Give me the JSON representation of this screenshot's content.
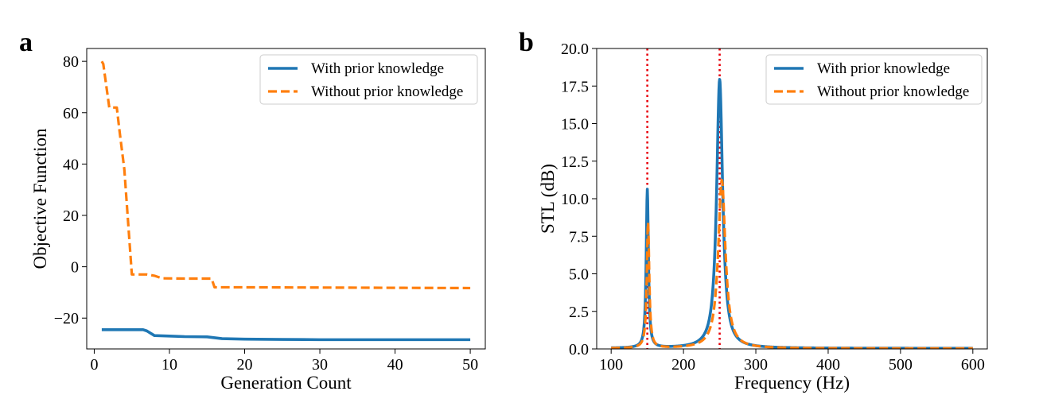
{
  "figure": {
    "panel_a": "a",
    "panel_b": "b"
  },
  "chart_data": [
    {
      "type": "line",
      "panel": "a",
      "title": "",
      "xlabel": "Generation Count",
      "ylabel": "Objective Function",
      "xlim": [
        -1,
        52
      ],
      "ylim": [
        -32,
        85
      ],
      "xticks": [
        0,
        10,
        20,
        30,
        40,
        50
      ],
      "xtick_labels": [
        "0",
        "10",
        "20",
        "30",
        "40",
        "50"
      ],
      "yticks": [
        -20,
        0,
        20,
        40,
        60,
        80
      ],
      "ytick_labels": [
        "−20",
        "0",
        "20",
        "40",
        "60",
        "80"
      ],
      "legend_position": "top-right",
      "series": [
        {
          "name": "With prior knowledge",
          "color": "#1f77b4",
          "style": "solid",
          "points": [
            [
              1,
              -24.5
            ],
            [
              6.5,
              -24.5
            ],
            [
              7,
              -25
            ],
            [
              8,
              -26.8
            ],
            [
              10,
              -27
            ],
            [
              12,
              -27.2
            ],
            [
              15,
              -27.3
            ],
            [
              17,
              -28
            ],
            [
              20,
              -28.2
            ],
            [
              25,
              -28.3
            ],
            [
              30,
              -28.4
            ],
            [
              40,
              -28.4
            ],
            [
              50,
              -28.4
            ]
          ]
        },
        {
          "name": "Without prior knowledge",
          "color": "#ff7f0e",
          "style": "dashed",
          "points": [
            [
              1,
              80
            ],
            [
              1.2,
              79
            ],
            [
              2,
              62
            ],
            [
              3,
              62
            ],
            [
              3.4,
              52
            ],
            [
              4,
              38
            ],
            [
              5,
              -3
            ],
            [
              7,
              -3
            ],
            [
              8,
              -3.5
            ],
            [
              9,
              -4.5
            ],
            [
              12,
              -4.6
            ],
            [
              15.6,
              -4.6
            ],
            [
              16,
              -8
            ],
            [
              20,
              -8
            ],
            [
              30,
              -8.1
            ],
            [
              40,
              -8.2
            ],
            [
              50,
              -8.3
            ]
          ]
        }
      ]
    },
    {
      "type": "line",
      "panel": "b",
      "title": "",
      "xlabel": "Frequency (Hz)",
      "ylabel": "STL (dB)",
      "xlim": [
        80,
        620
      ],
      "ylim": [
        0,
        20
      ],
      "xticks": [
        100,
        200,
        300,
        400,
        500,
        600
      ],
      "xtick_labels": [
        "100",
        "200",
        "300",
        "400",
        "500",
        "600"
      ],
      "yticks": [
        0,
        2.5,
        5,
        7.5,
        10,
        12.5,
        15,
        17.5,
        20
      ],
      "ytick_labels": [
        "0.0",
        "2.5",
        "5.0",
        "7.5",
        "10.0",
        "12.5",
        "15.0",
        "17.5",
        "20.0"
      ],
      "legend_position": "top-right",
      "reference_lines": {
        "x": [
          150,
          250
        ],
        "color": "#e8000b",
        "style": "dotted"
      },
      "series": [
        {
          "name": "With prior knowledge",
          "color": "#1f77b4",
          "style": "solid",
          "baseline": 0.04,
          "peaks": [
            {
              "f": 150,
              "height": 10.55,
              "width": 1.8
            },
            {
              "f": 250,
              "height": 17.9,
              "width": 5
            }
          ]
        },
        {
          "name": "Without prior knowledge",
          "color": "#ff7f0e",
          "style": "dashed",
          "baseline": 0.03,
          "peaks": [
            {
              "f": 151,
              "height": 8.35,
              "width": 2
            },
            {
              "f": 253,
              "height": 11.2,
              "width": 6
            }
          ]
        }
      ]
    }
  ]
}
